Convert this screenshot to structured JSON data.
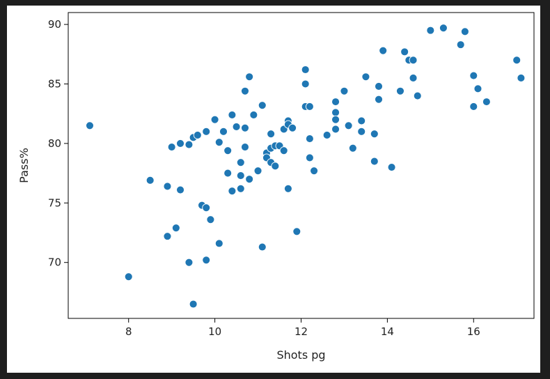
{
  "chart_data": {
    "type": "scatter",
    "title": "",
    "xlabel": "Shots pg",
    "ylabel": "Pass%",
    "xlim": [
      6.6,
      17.4
    ],
    "ylim": [
      65.3,
      91.0
    ],
    "xticks": [
      8,
      10,
      12,
      14,
      16
    ],
    "yticks": [
      70,
      75,
      80,
      85,
      90
    ],
    "grid": false,
    "marker_color": "#1f77b4",
    "series": [
      {
        "points": [
          [
            7.1,
            81.5
          ],
          [
            8.0,
            68.8
          ],
          [
            8.5,
            76.9
          ],
          [
            8.9,
            76.4
          ],
          [
            8.9,
            72.2
          ],
          [
            9.0,
            79.7
          ],
          [
            9.1,
            72.9
          ],
          [
            9.2,
            80.0
          ],
          [
            9.2,
            76.1
          ],
          [
            9.4,
            79.9
          ],
          [
            9.4,
            70.0
          ],
          [
            9.5,
            80.5
          ],
          [
            9.5,
            66.5
          ],
          [
            9.6,
            80.7
          ],
          [
            9.7,
            74.8
          ],
          [
            9.8,
            74.6
          ],
          [
            9.8,
            81.0
          ],
          [
            9.8,
            70.2
          ],
          [
            9.9,
            73.6
          ],
          [
            10.0,
            82.0
          ],
          [
            10.1,
            80.1
          ],
          [
            10.1,
            71.6
          ],
          [
            10.2,
            81.0
          ],
          [
            10.3,
            79.4
          ],
          [
            10.3,
            77.5
          ],
          [
            10.4,
            82.4
          ],
          [
            10.4,
            76.0
          ],
          [
            10.5,
            81.4
          ],
          [
            10.6,
            78.4
          ],
          [
            10.6,
            77.3
          ],
          [
            10.6,
            76.2
          ],
          [
            10.7,
            84.4
          ],
          [
            10.7,
            81.3
          ],
          [
            10.7,
            79.7
          ],
          [
            10.8,
            85.6
          ],
          [
            10.8,
            77.0
          ],
          [
            10.9,
            82.4
          ],
          [
            11.0,
            77.7
          ],
          [
            11.1,
            83.2
          ],
          [
            11.1,
            71.3
          ],
          [
            11.2,
            79.2
          ],
          [
            11.2,
            78.8
          ],
          [
            11.3,
            80.8
          ],
          [
            11.3,
            79.6
          ],
          [
            11.3,
            78.4
          ],
          [
            11.4,
            79.8
          ],
          [
            11.4,
            78.1
          ],
          [
            11.5,
            79.8
          ],
          [
            11.6,
            81.2
          ],
          [
            11.6,
            79.4
          ],
          [
            11.7,
            81.9
          ],
          [
            11.7,
            81.6
          ],
          [
            11.7,
            76.2
          ],
          [
            11.8,
            81.3
          ],
          [
            11.9,
            72.6
          ],
          [
            12.1,
            86.2
          ],
          [
            12.1,
            85.0
          ],
          [
            12.1,
            83.1
          ],
          [
            12.2,
            83.1
          ],
          [
            12.2,
            80.4
          ],
          [
            12.2,
            78.8
          ],
          [
            12.3,
            77.7
          ],
          [
            12.6,
            80.7
          ],
          [
            12.8,
            83.5
          ],
          [
            12.8,
            82.6
          ],
          [
            12.8,
            82.0
          ],
          [
            12.8,
            81.2
          ],
          [
            13.0,
            84.4
          ],
          [
            13.1,
            81.5
          ],
          [
            13.2,
            79.6
          ],
          [
            13.4,
            81.9
          ],
          [
            13.4,
            81.0
          ],
          [
            13.5,
            85.6
          ],
          [
            13.7,
            80.8
          ],
          [
            13.7,
            78.5
          ],
          [
            13.8,
            84.8
          ],
          [
            13.8,
            83.7
          ],
          [
            13.9,
            87.8
          ],
          [
            14.1,
            78.0
          ],
          [
            14.3,
            84.4
          ],
          [
            14.4,
            87.7
          ],
          [
            14.5,
            87.0
          ],
          [
            14.6,
            87.0
          ],
          [
            14.6,
            85.5
          ],
          [
            14.7,
            84.0
          ],
          [
            15.0,
            89.5
          ],
          [
            15.3,
            89.7
          ],
          [
            15.7,
            88.3
          ],
          [
            15.8,
            89.4
          ],
          [
            16.0,
            85.7
          ],
          [
            16.0,
            83.1
          ],
          [
            16.1,
            84.6
          ],
          [
            16.3,
            83.5
          ],
          [
            17.0,
            87.0
          ],
          [
            17.1,
            85.5
          ]
        ]
      }
    ]
  }
}
